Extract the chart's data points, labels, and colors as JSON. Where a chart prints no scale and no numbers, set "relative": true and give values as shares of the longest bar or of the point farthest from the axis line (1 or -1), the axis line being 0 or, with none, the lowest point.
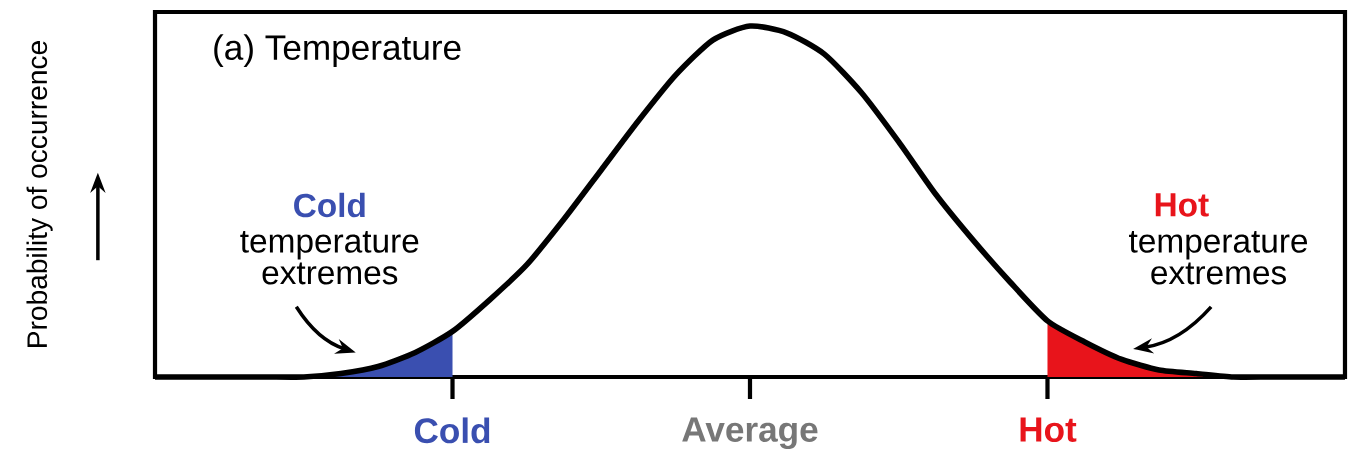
{
  "chart_data": {
    "type": "line",
    "relative": true,
    "title": "(a) Temperature",
    "ylabel": "Probability of occurrence",
    "categories": [
      null,
      null,
      null,
      null,
      null,
      null,
      null,
      null,
      "Cold",
      null,
      null,
      null,
      null,
      null,
      null,
      null,
      "Average",
      null,
      null,
      null,
      null,
      null,
      null,
      null,
      "Hot",
      null,
      null,
      null,
      null,
      null,
      null,
      null,
      null
    ],
    "series": [
      {
        "color": "#000000",
        "values": [
          0,
          0,
          0,
          0,
          0,
          0.01,
          0.03,
          0.07,
          0.13,
          0.22,
          0.32,
          0.45,
          0.59,
          0.73,
          0.86,
          0.96,
          1.0,
          0.98,
          0.92,
          0.81,
          0.67,
          0.52,
          0.39,
          0.27,
          0.16,
          0.1,
          0.05,
          0.02,
          0.01,
          0,
          0,
          0,
          0
        ]
      },
      {
        "type": "area",
        "color": "#3a4fb0",
        "values": [
          0,
          0,
          0,
          0,
          0,
          0.01,
          0.03,
          0.07,
          0.13,
          null,
          null,
          null,
          null,
          null,
          null,
          null,
          null,
          null,
          null,
          null,
          null,
          null,
          null,
          null,
          null,
          null,
          null,
          null,
          null,
          null,
          null,
          null,
          null
        ]
      },
      {
        "type": "area",
        "color": "#e8141b",
        "values": [
          null,
          null,
          null,
          null,
          null,
          null,
          null,
          null,
          null,
          null,
          null,
          null,
          null,
          null,
          null,
          null,
          null,
          null,
          null,
          null,
          null,
          null,
          null,
          null,
          0.16,
          0.1,
          0.05,
          0.02,
          0.01,
          0,
          0,
          0,
          0
        ]
      }
    ],
    "annotations": [
      "Cold",
      "temperature extremes",
      "Hot",
      "temperature extremes"
    ],
    "marker": "none",
    "line_style": "solid",
    "grid": false
  }
}
